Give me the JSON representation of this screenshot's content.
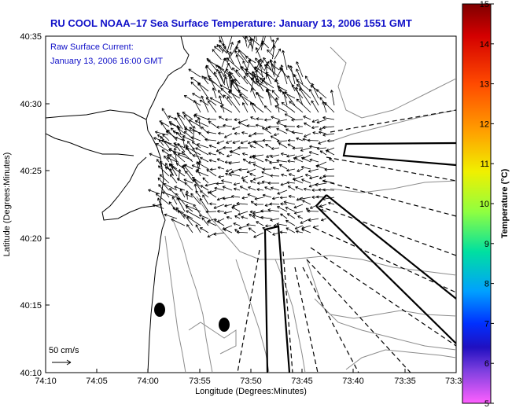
{
  "title": "RU COOL  NOAA–17  Sea Surface Temperature:  January 13, 2006 1551 GMT",
  "annotation": {
    "line1": "Raw Surface Current:",
    "line2": "January 13, 2006 16:00 GMT"
  },
  "scale_label": "50 cm/s",
  "xlabel": "Longitude (Degrees:Minutes)",
  "ylabel": "Latitude (Degrees:Minutes)",
  "x_ticks": [
    "74:10",
    "74:05",
    "74:00",
    "73:55",
    "73:50",
    "73:45",
    "73:40",
    "73:35",
    "73:3"
  ],
  "y_ticks": [
    "40:35",
    "40:30",
    "40:25",
    "40:20",
    "40:15",
    "40:10"
  ],
  "colorbar": {
    "label": "Temperature (°C)",
    "ticks": [
      "15",
      "14",
      "13",
      "12",
      "11",
      "10",
      "9",
      "8",
      "7",
      "6",
      "5"
    ],
    "range": [
      5,
      15
    ]
  },
  "colors": {
    "title": "#1010c8",
    "annotation": "#1010c8"
  }
}
